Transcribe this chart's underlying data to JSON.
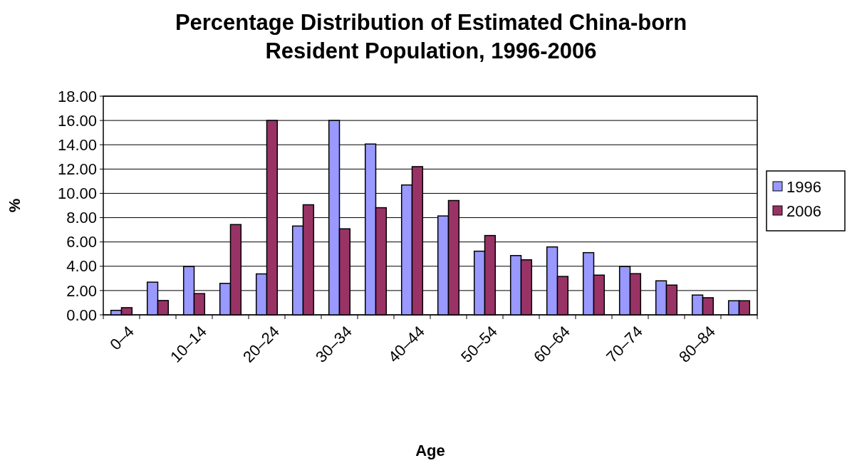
{
  "chart_data": {
    "type": "bar",
    "title": "Percentage Distribution of Estimated China-born Resident Population, 1996-2006",
    "xlabel": "Age",
    "ylabel": "%",
    "categories": [
      "0–4",
      null,
      "10–14",
      null,
      "20–24",
      null,
      "30–34",
      null,
      "40–44",
      null,
      "50–54",
      null,
      "60–64",
      null,
      "70–74",
      null,
      "80–84",
      null
    ],
    "series": [
      {
        "name": "1996",
        "color": "#9999ff",
        "values": [
          0.37,
          2.69,
          3.98,
          2.59,
          3.37,
          7.31,
          16.0,
          14.06,
          10.69,
          8.14,
          5.24,
          4.88,
          5.59,
          5.12,
          3.98,
          2.8,
          1.63,
          1.16
        ]
      },
      {
        "name": "2006",
        "color": "#993366",
        "values": [
          0.59,
          1.18,
          1.75,
          7.43,
          16.0,
          9.06,
          7.08,
          8.82,
          12.2,
          9.41,
          6.53,
          4.53,
          3.16,
          3.27,
          3.39,
          2.45,
          1.41,
          1.16
        ]
      }
    ],
    "ylim": [
      0,
      18
    ],
    "yticks": [
      {
        "value": 0,
        "label": "0.00"
      },
      {
        "value": 2,
        "label": "2.00"
      },
      {
        "value": 4,
        "label": "4.00"
      },
      {
        "value": 6,
        "label": "6.00"
      },
      {
        "value": 8,
        "label": "8.00"
      },
      {
        "value": 10,
        "label": "10.00"
      },
      {
        "value": 12,
        "label": "12.00"
      },
      {
        "value": 14,
        "label": "14.00"
      },
      {
        "value": 16,
        "label": "16.00"
      },
      {
        "value": 18,
        "label": "18.00"
      }
    ],
    "grid": "y",
    "legend": "right"
  }
}
